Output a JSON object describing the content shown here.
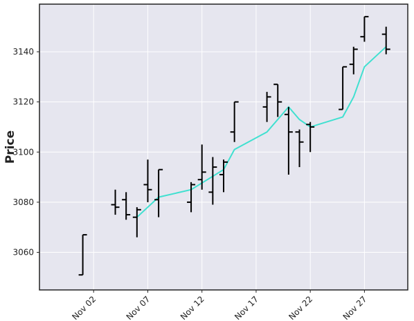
{
  "chart_data": {
    "type": "ohlc",
    "title": "",
    "xlabel": "",
    "ylabel": "Price",
    "ylim": [
      3045,
      3159
    ],
    "xlim": [
      "2019-10-28",
      "2019-12-01"
    ],
    "grid": true,
    "colors": {
      "background": "#e6e6ef",
      "grid": "#ffffff",
      "bar": "#000000",
      "ma": "#40e0d0",
      "frame": "#222222"
    },
    "x_ticks": [
      "Nov 02",
      "Nov 07",
      "Nov 12",
      "Nov 17",
      "Nov 22",
      "Nov 27"
    ],
    "x_tick_dates": [
      "2019-11-02",
      "2019-11-07",
      "2019-11-12",
      "2019-11-17",
      "2019-11-22",
      "2019-11-27"
    ],
    "y_ticks": [
      3060,
      3080,
      3100,
      3120,
      3140
    ],
    "series": [
      {
        "type": "ohlc",
        "points": [
          {
            "date": "2019-11-01",
            "open": 3051,
            "high": 3067,
            "low": 3051,
            "close": 3067
          },
          {
            "date": "2019-11-04",
            "open": 3079,
            "high": 3085,
            "low": 3075,
            "close": 3078
          },
          {
            "date": "2019-11-05",
            "open": 3081,
            "high": 3084,
            "low": 3073,
            "close": 3075
          },
          {
            "date": "2019-11-06",
            "open": 3074,
            "high": 3078,
            "low": 3066,
            "close": 3077
          },
          {
            "date": "2019-11-07",
            "open": 3087,
            "high": 3097,
            "low": 3080,
            "close": 3085
          },
          {
            "date": "2019-11-08",
            "open": 3081,
            "high": 3093,
            "low": 3074,
            "close": 3093
          },
          {
            "date": "2019-11-11",
            "open": 3080,
            "high": 3088,
            "low": 3076,
            "close": 3087
          },
          {
            "date": "2019-11-12",
            "open": 3089,
            "high": 3103,
            "low": 3085,
            "close": 3092
          },
          {
            "date": "2019-11-13",
            "open": 3084,
            "high": 3098,
            "low": 3079,
            "close": 3094
          },
          {
            "date": "2019-11-14",
            "open": 3091,
            "high": 3097,
            "low": 3084,
            "close": 3096
          },
          {
            "date": "2019-11-15",
            "open": 3108,
            "high": 3120,
            "low": 3104,
            "close": 3120
          },
          {
            "date": "2019-11-18",
            "open": 3118,
            "high": 3124,
            "low": 3112,
            "close": 3122
          },
          {
            "date": "2019-11-19",
            "open": 3127,
            "high": 3127,
            "low": 3114,
            "close": 3120
          },
          {
            "date": "2019-11-20",
            "open": 3115,
            "high": 3118,
            "low": 3091,
            "close": 3108
          },
          {
            "date": "2019-11-21",
            "open": 3108,
            "high": 3109,
            "low": 3094,
            "close": 3104
          },
          {
            "date": "2019-11-22",
            "open": 3111,
            "high": 3112,
            "low": 3100,
            "close": 3110
          },
          {
            "date": "2019-11-25",
            "open": 3117,
            "high": 3134,
            "low": 3117,
            "close": 3134
          },
          {
            "date": "2019-11-26",
            "open": 3135,
            "high": 3142,
            "low": 3131,
            "close": 3141
          },
          {
            "date": "2019-11-27",
            "open": 3146,
            "high": 3154,
            "low": 3144,
            "close": 3154
          },
          {
            "date": "2019-11-29",
            "open": 3147,
            "high": 3150,
            "low": 3139,
            "close": 3141
          }
        ]
      },
      {
        "type": "line",
        "points": [
          {
            "date": "2019-11-06",
            "value": 3074
          },
          {
            "date": "2019-11-08",
            "value": 3082
          },
          {
            "date": "2019-11-11",
            "value": 3085
          },
          {
            "date": "2019-11-14",
            "value": 3093
          },
          {
            "date": "2019-11-15",
            "value": 3101
          },
          {
            "date": "2019-11-18",
            "value": 3108
          },
          {
            "date": "2019-11-20",
            "value": 3118
          },
          {
            "date": "2019-11-21",
            "value": 3113
          },
          {
            "date": "2019-11-22",
            "value": 3110
          },
          {
            "date": "2019-11-25",
            "value": 3114
          },
          {
            "date": "2019-11-26",
            "value": 3122
          },
          {
            "date": "2019-11-27",
            "value": 3134
          },
          {
            "date": "2019-11-29",
            "value": 3142
          }
        ]
      }
    ]
  }
}
